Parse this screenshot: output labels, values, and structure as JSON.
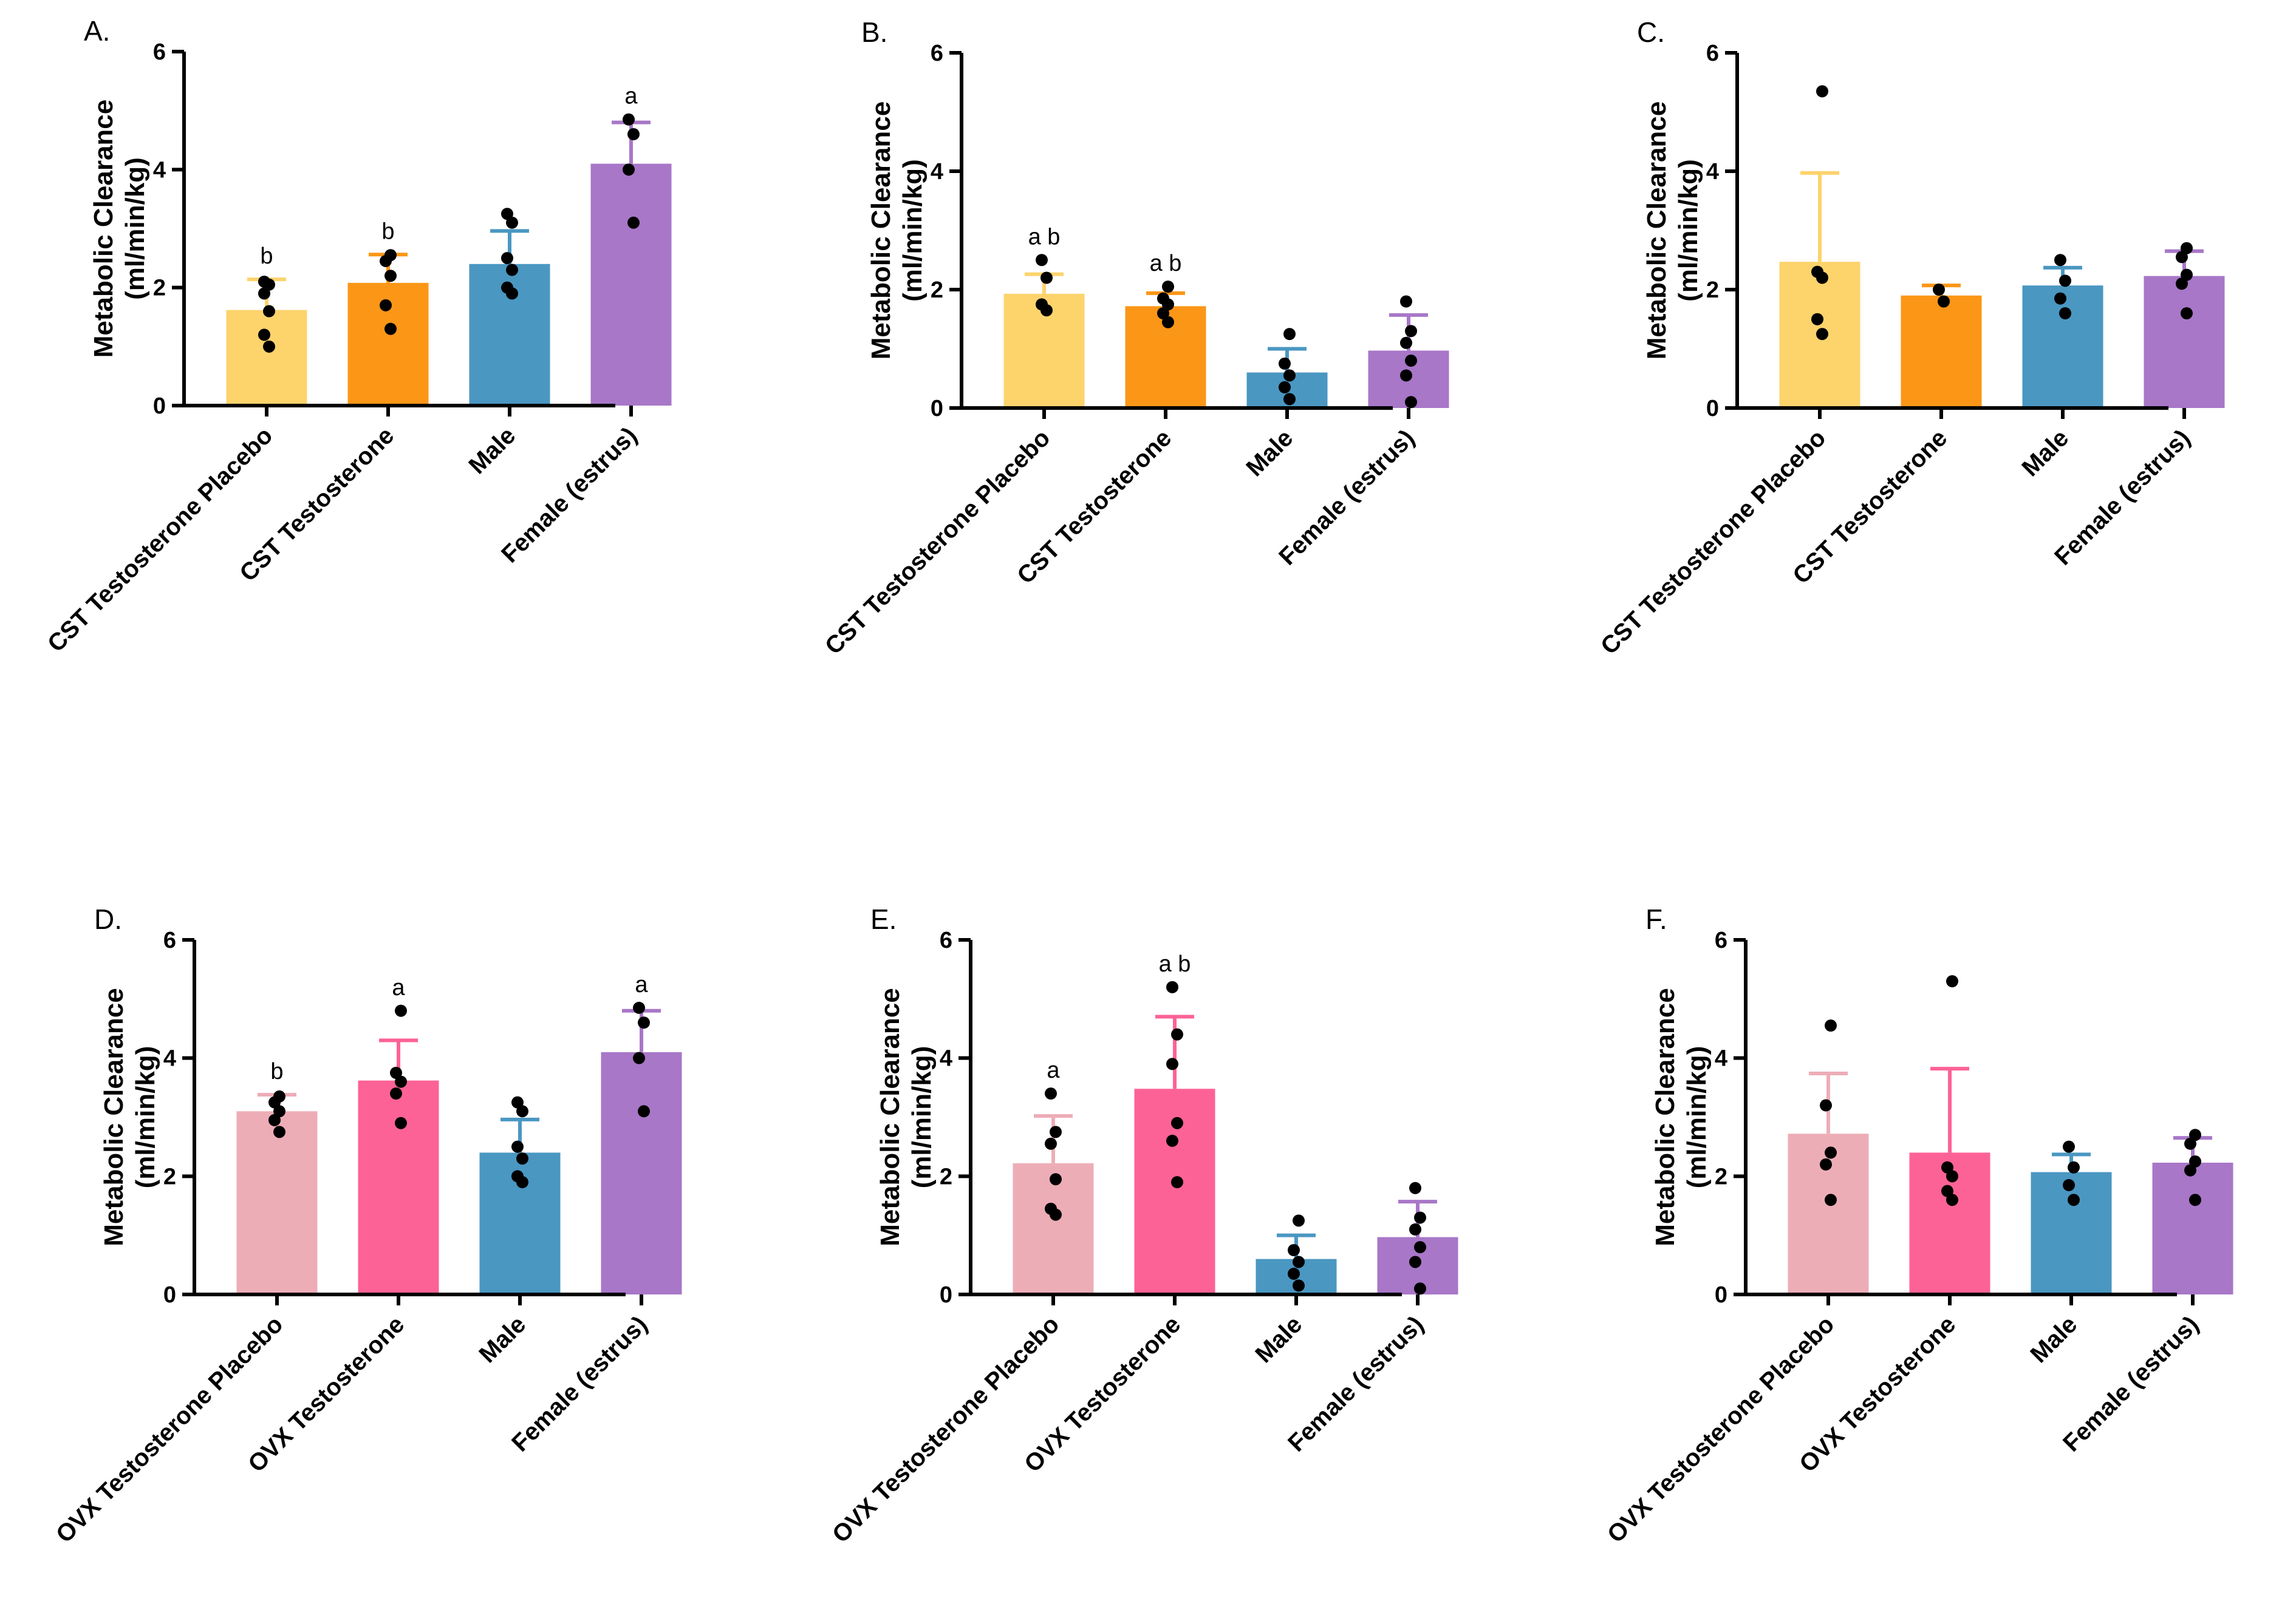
{
  "chart_data": [
    {
      "panel": "A.",
      "type": "bar",
      "ylabel": [
        "Metabolic Clearance",
        "(ml/min/kg)"
      ],
      "ylim": [
        0,
        6
      ],
      "yticks": [
        "0",
        "2",
        "4",
        "6"
      ],
      "categories": [
        "CST Testosterone Placebo",
        "CST Testosterone",
        "Male",
        "Female (estrus)"
      ],
      "values": [
        1.62,
        2.08,
        2.4,
        4.1
      ],
      "errors": [
        0.52,
        0.48,
        0.56,
        0.7
      ],
      "colors": [
        "#fdd36c",
        "#fb9617",
        "#4a97c2",
        "#a877c8"
      ],
      "sig": [
        "b",
        "b",
        "",
        "a"
      ],
      "points": [
        [
          1.0,
          1.2,
          1.6,
          1.9,
          2.05,
          2.1
        ],
        [
          1.3,
          1.7,
          2.2,
          2.45,
          2.55
        ],
        [
          1.9,
          2.0,
          2.3,
          2.5,
          3.1,
          3.25
        ],
        [
          3.1,
          4.0,
          4.6,
          4.85
        ]
      ]
    },
    {
      "panel": "B.",
      "type": "bar",
      "ylabel": [
        "Metabolic Clearance",
        "(ml/min/kg)"
      ],
      "ylim": [
        0,
        6
      ],
      "yticks": [
        "0",
        "2",
        "4",
        "6"
      ],
      "categories": [
        "CST Testosterone Placebo",
        "CST Testosterone",
        "Male",
        "Female (estrus)"
      ],
      "values": [
        1.93,
        1.72,
        0.6,
        0.97
      ],
      "errors": [
        0.33,
        0.22,
        0.4,
        0.6
      ],
      "colors": [
        "#fdd36c",
        "#fb9617",
        "#4a97c2",
        "#a877c8"
      ],
      "sig": [
        "a b",
        "a b",
        "",
        ""
      ],
      "points": [
        [
          1.65,
          1.75,
          2.2,
          2.5
        ],
        [
          1.45,
          1.6,
          1.75,
          1.85,
          2.05
        ],
        [
          0.15,
          0.35,
          0.55,
          0.75,
          1.25
        ],
        [
          0.1,
          0.55,
          0.8,
          1.1,
          1.3,
          1.8
        ]
      ]
    },
    {
      "panel": "C.",
      "type": "bar",
      "ylabel": [
        "Metabolic Clearance",
        "(ml/min/kg)"
      ],
      "ylim": [
        0,
        6
      ],
      "yticks": [
        "0",
        "2",
        "4",
        "6"
      ],
      "categories": [
        "CST Testosterone Placebo",
        "CST Testosterone",
        "Male",
        "Female (estrus)"
      ],
      "values": [
        2.47,
        1.9,
        2.07,
        2.23
      ],
      "errors": [
        1.5,
        0.17,
        0.3,
        0.42
      ],
      "colors": [
        "#fdd36c",
        "#fb9617",
        "#4a97c2",
        "#a877c8"
      ],
      "sig": [
        "",
        "",
        "",
        ""
      ],
      "points": [
        [
          1.25,
          1.5,
          2.2,
          2.3,
          5.35
        ],
        [
          1.8,
          2.0
        ],
        [
          1.6,
          1.85,
          2.15,
          2.5
        ],
        [
          1.6,
          2.1,
          2.25,
          2.55,
          2.7
        ]
      ]
    },
    {
      "panel": "D.",
      "type": "bar",
      "ylabel": [
        "Metabolic Clearance",
        "(ml/min/kg)"
      ],
      "ylim": [
        0,
        6
      ],
      "yticks": [
        "0",
        "2",
        "4",
        "6"
      ],
      "categories": [
        "OVX Testosterone Placebo",
        "OVX Testosterone",
        "Male",
        "Female (estrus)"
      ],
      "values": [
        3.1,
        3.62,
        2.4,
        4.1
      ],
      "errors": [
        0.28,
        0.68,
        0.56,
        0.7
      ],
      "colors": [
        "#edadb7",
        "#fd6297",
        "#4a97c2",
        "#a877c8"
      ],
      "sig": [
        "b",
        "a",
        "",
        "a"
      ],
      "points": [
        [
          2.75,
          2.95,
          3.1,
          3.25,
          3.35
        ],
        [
          2.9,
          3.4,
          3.6,
          3.75,
          4.8
        ],
        [
          1.9,
          2.0,
          2.3,
          2.5,
          3.1,
          3.25
        ],
        [
          3.1,
          4.0,
          4.6,
          4.85
        ]
      ]
    },
    {
      "panel": "E.",
      "type": "bar",
      "ylabel": [
        "Metabolic Clearance",
        "(ml/min/kg)"
      ],
      "ylim": [
        0,
        6
      ],
      "yticks": [
        "0",
        "2",
        "4",
        "6"
      ],
      "categories": [
        "OVX Testosterone Placebo",
        "OVX Testosterone",
        "Male",
        "Female (estrus)"
      ],
      "values": [
        2.22,
        3.48,
        0.6,
        0.97
      ],
      "errors": [
        0.8,
        1.22,
        0.4,
        0.6
      ],
      "colors": [
        "#edadb7",
        "#fd6297",
        "#4a97c2",
        "#a877c8"
      ],
      "sig": [
        "a",
        "a b",
        "",
        ""
      ],
      "points": [
        [
          1.35,
          1.45,
          1.95,
          2.55,
          2.75,
          3.4
        ],
        [
          1.9,
          2.6,
          2.9,
          3.9,
          4.4,
          5.2
        ],
        [
          0.15,
          0.35,
          0.55,
          0.75,
          1.25
        ],
        [
          0.1,
          0.55,
          0.8,
          1.1,
          1.3,
          1.8
        ]
      ]
    },
    {
      "panel": "F.",
      "type": "bar",
      "ylabel": [
        "Metabolic Clearance",
        "(ml/min/kg)"
      ],
      "ylim": [
        0,
        6
      ],
      "yticks": [
        "0",
        "2",
        "4",
        "6"
      ],
      "categories": [
        "OVX Testosterone Placebo",
        "OVX Testosterone",
        "Male",
        "Female (estrus)"
      ],
      "values": [
        2.72,
        2.4,
        2.07,
        2.23
      ],
      "errors": [
        1.02,
        1.42,
        0.3,
        0.42
      ],
      "colors": [
        "#edadb7",
        "#fd6297",
        "#4a97c2",
        "#a877c8"
      ],
      "sig": [
        "",
        "",
        "",
        ""
      ],
      "points": [
        [
          1.6,
          2.2,
          2.4,
          3.2,
          4.55
        ],
        [
          1.6,
          1.75,
          2.0,
          2.15,
          5.3
        ],
        [
          1.6,
          1.85,
          2.15,
          2.5
        ],
        [
          1.6,
          2.1,
          2.25,
          2.55,
          2.7
        ]
      ]
    }
  ]
}
